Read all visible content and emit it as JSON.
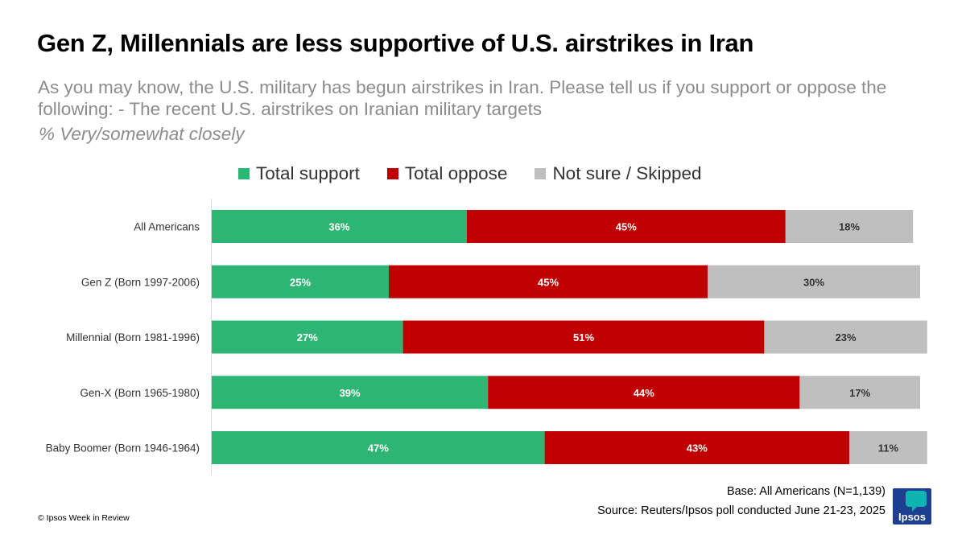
{
  "title": "Gen Z, Millennials are less supportive of U.S. airstrikes in Iran",
  "subtitle": "As you may know, the U.S. military has begun airstrikes in Iran. Please tell us if you support or oppose the following: - The recent U.S. airstrikes on Iranian military targets",
  "metric_note": "% Very/somewhat closely",
  "footer": {
    "base": "Base: All Americans (N=1,139)",
    "source": "Source: Reuters/Ipsos poll conducted June 21-23, 2025",
    "copyright": "© Ipsos Week in Review",
    "logo_text": "Ipsos"
  },
  "colors": {
    "support": "#2db573",
    "oppose": "#c00000",
    "not_sure": "#bfbfbf",
    "logo_bg": "#1d3f8f",
    "logo_accent": "#0fb3b0"
  },
  "chart_data": {
    "type": "bar",
    "orientation": "horizontal",
    "stacked": true,
    "unit": "%",
    "categories": [
      "All Americans",
      "Gen Z (Born 1997-2006)",
      "Millennial (Born 1981-1996)",
      "Gen-X (Born 1965-1980)",
      "Baby Boomer (Born 1946-1964)"
    ],
    "series": [
      {
        "name": "Total support",
        "color": "#2db573",
        "label_color": "#ffffff",
        "values": [
          36,
          25,
          27,
          39,
          47
        ]
      },
      {
        "name": "Total oppose",
        "color": "#c00000",
        "label_color": "#ffffff",
        "values": [
          45,
          45,
          51,
          44,
          43
        ]
      },
      {
        "name": "Not sure / Skipped",
        "color": "#bfbfbf",
        "label_color": "#333333",
        "values": [
          18,
          30,
          23,
          17,
          11
        ]
      }
    ],
    "xlim": [
      0,
      100
    ],
    "legend_position": "top",
    "grid": false
  }
}
